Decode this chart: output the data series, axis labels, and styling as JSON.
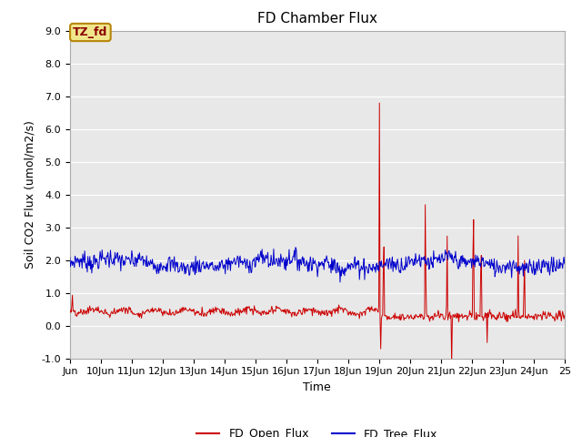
{
  "title": "FD Chamber Flux",
  "xlabel": "Time",
  "ylabel": "Soil CO2 Flux (umol/m2/s)",
  "ylim": [
    -1.0,
    9.0
  ],
  "yticks": [
    -1.0,
    0.0,
    1.0,
    2.0,
    3.0,
    4.0,
    5.0,
    6.0,
    7.0,
    8.0,
    9.0
  ],
  "background_color": "#e8e8e8",
  "annotation_text": "TZ_fd",
  "annotation_bbox_facecolor": "#f0e68c",
  "annotation_bbox_edgecolor": "#b8860b",
  "line1_color": "#cc0000",
  "line2_color": "#0000cc",
  "legend_labels": [
    "FD_Open_Flux",
    "FD_Tree_Flux"
  ],
  "x_start": 9,
  "x_end": 25,
  "xtick_positions": [
    9,
    10,
    11,
    12,
    13,
    14,
    15,
    16,
    17,
    18,
    19,
    20,
    21,
    22,
    23,
    24,
    25
  ],
  "xtick_labels": [
    "Jun",
    "10Jun",
    "11Jun",
    "12Jun",
    "13Jun",
    "14Jun",
    "15Jun",
    "16Jun",
    "17Jun",
    "18Jun",
    "19Jun",
    "20Jun",
    "21Jun",
    "22Jun",
    "23Jun",
    "24Jun",
    "25"
  ],
  "title_fontsize": 11,
  "axis_label_fontsize": 9,
  "tick_fontsize": 8,
  "legend_fontsize": 9
}
